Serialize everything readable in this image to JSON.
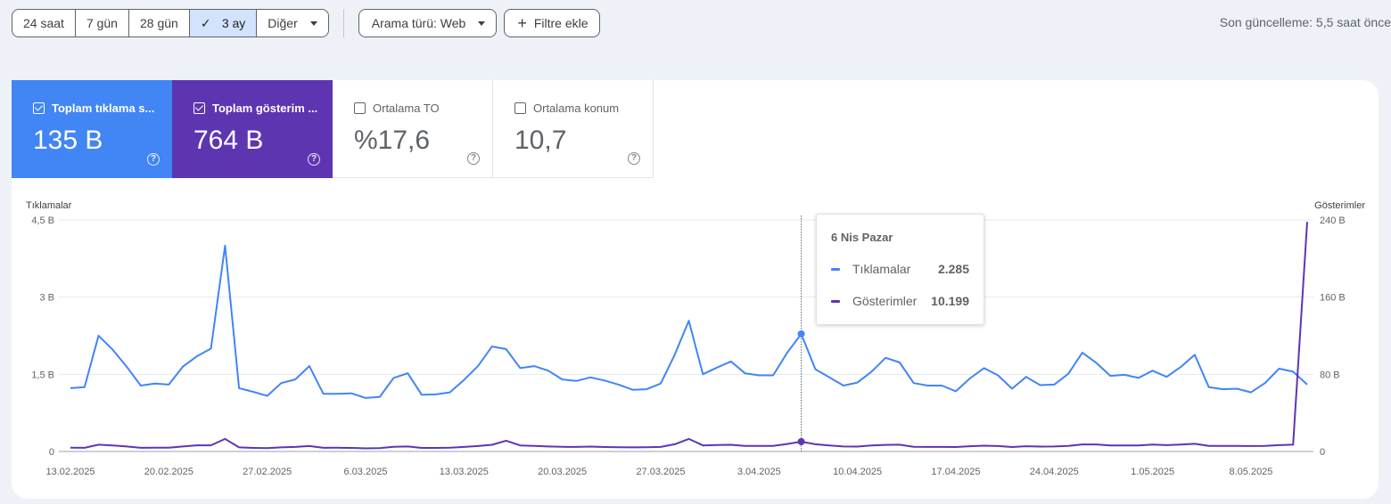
{
  "toolbar": {
    "ranges": [
      {
        "label": "24 saat",
        "active": false
      },
      {
        "label": "7 gün",
        "active": false
      },
      {
        "label": "28 gün",
        "active": false
      },
      {
        "label": "3 ay",
        "active": true
      },
      {
        "label": "Diğer",
        "active": false,
        "dropdown": true
      }
    ],
    "search_type_label": "Arama türü: Web",
    "add_filter_label": "Filtre ekle",
    "last_update": "Son güncelleme: 5,5 saat önce"
  },
  "metrics": [
    {
      "label": "Toplam tıklama s...",
      "value": "135 B",
      "checked": true,
      "color": "#4285f4"
    },
    {
      "label": "Toplam gösterim ...",
      "value": "764 B",
      "checked": true,
      "color": "#5e35b1"
    },
    {
      "label": "Ortalama TO",
      "value": "%17,6",
      "checked": false
    },
    {
      "label": "Ortalama konum",
      "value": "10,7",
      "checked": false
    }
  ],
  "tooltip": {
    "title": "6 Nis Pazar",
    "rows": [
      {
        "name": "Tıklamalar",
        "value": "2.285",
        "color": "#4285f4"
      },
      {
        "name": "Gösterimler",
        "value": "10.199",
        "color": "#5e35b1"
      }
    ]
  },
  "chart_data": {
    "type": "line",
    "left_axis_title": "Tıklamalar",
    "right_axis_title": "Gösterimler",
    "left_ticks": [
      "0",
      "1,5 B",
      "3 B",
      "4,5 B"
    ],
    "left_ylim": [
      0,
      4500
    ],
    "right_ticks": [
      "0",
      "80 B",
      "160 B",
      "240 B"
    ],
    "right_ylim": [
      0,
      240000
    ],
    "x_tick_labels": [
      "13.02.2025",
      "20.02.2025",
      "27.02.2025",
      "6.03.2025",
      "13.03.2025",
      "20.03.2025",
      "27.03.2025",
      "3.04.2025",
      "10.04.2025",
      "17.04.2025",
      "24.04.2025",
      "1.05.2025",
      "8.05.2025"
    ],
    "x_start": "13.02.2025",
    "x_end": "13.05.2025",
    "highlight_date": "6.04.2025",
    "grid": true,
    "series": [
      {
        "name": "Tıklamalar",
        "color": "#4285f4",
        "axis": "left",
        "values": [
          1230,
          1250,
          2250,
          1980,
          1650,
          1280,
          1320,
          1300,
          1650,
          1850,
          2000,
          4000,
          1230,
          1160,
          1080,
          1330,
          1400,
          1660,
          1120,
          1120,
          1130,
          1040,
          1060,
          1430,
          1520,
          1100,
          1110,
          1150,
          1390,
          1660,
          2040,
          1990,
          1620,
          1660,
          1570,
          1400,
          1370,
          1440,
          1380,
          1300,
          1200,
          1210,
          1320,
          1880,
          2540,
          1500,
          1630,
          1750,
          1520,
          1480,
          1480,
          1920,
          2285,
          1600,
          1440,
          1280,
          1340,
          1550,
          1820,
          1730,
          1330,
          1280,
          1280,
          1170,
          1420,
          1620,
          1480,
          1220,
          1450,
          1290,
          1300,
          1510,
          1920,
          1720,
          1470,
          1490,
          1430,
          1570,
          1450,
          1640,
          1880,
          1250,
          1210,
          1220,
          1150,
          1330,
          1610,
          1550,
          1300
        ]
      },
      {
        "name": "Gösterimler",
        "color": "#5e35b1",
        "axis": "right",
        "values": [
          4000,
          3800,
          7000,
          6300,
          5200,
          3800,
          4000,
          4000,
          5200,
          6400,
          6400,
          13000,
          4200,
          3700,
          3400,
          4200,
          4700,
          5600,
          3800,
          3900,
          3700,
          3200,
          3400,
          4800,
          5200,
          3700,
          3700,
          3900,
          4700,
          5600,
          6900,
          11200,
          6300,
          5700,
          5200,
          4800,
          4700,
          5100,
          4600,
          4400,
          4200,
          4300,
          4700,
          7500,
          13000,
          6300,
          6700,
          6900,
          5800,
          5700,
          5700,
          7800,
          10199,
          7500,
          6300,
          5200,
          5100,
          6300,
          6800,
          7000,
          4800,
          4700,
          4700,
          4600,
          5400,
          6000,
          5600,
          4600,
          5400,
          5100,
          5200,
          5800,
          7300,
          7300,
          6300,
          6200,
          6300,
          7100,
          6600,
          7200,
          7900,
          5800,
          5700,
          5700,
          5600,
          5700,
          6600,
          7000,
          238000
        ]
      }
    ]
  }
}
